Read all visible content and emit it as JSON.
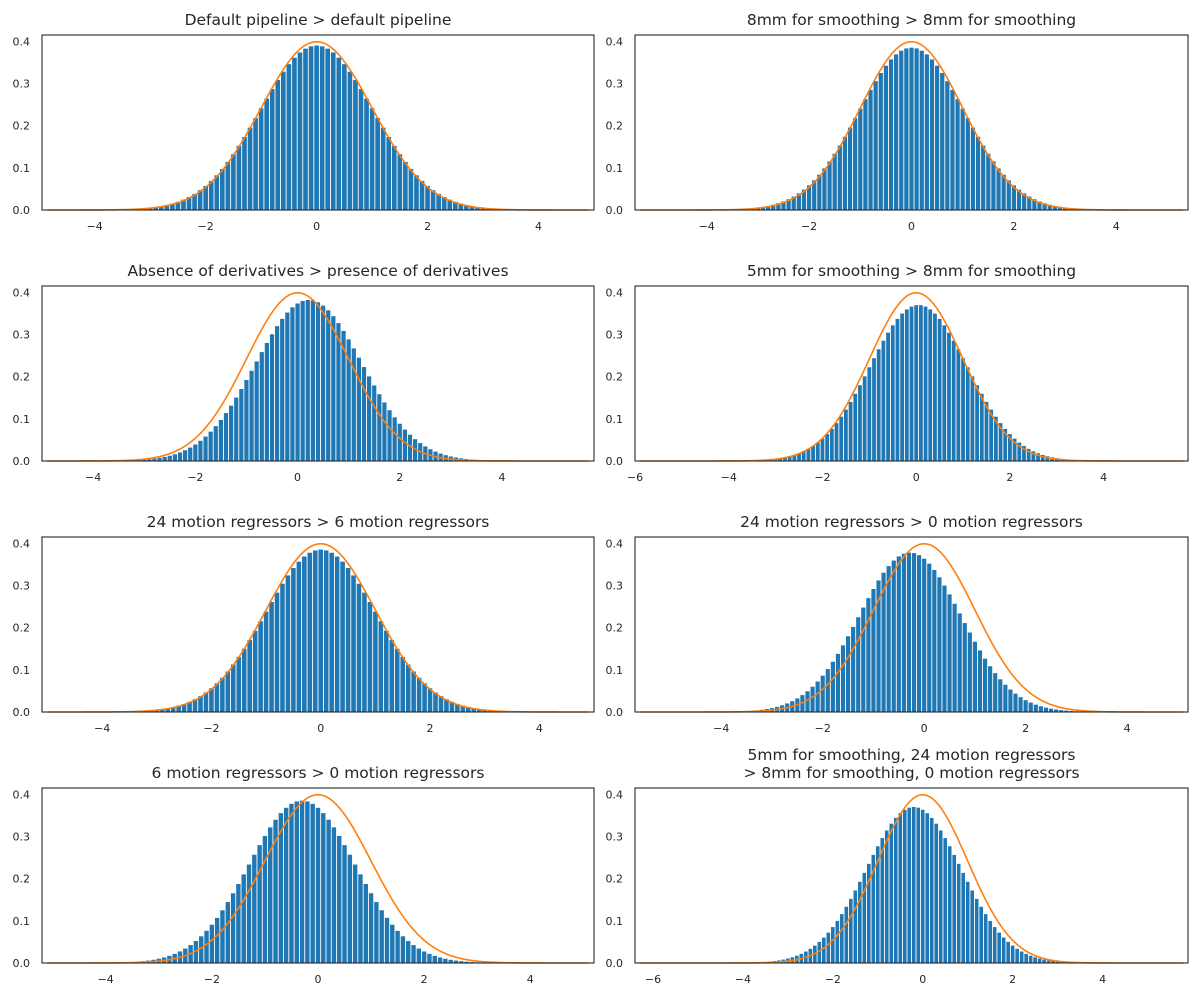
{
  "colors": {
    "bars": "#1f77b4",
    "curve": "#ff7f0e",
    "frame": "#262626",
    "background": "#ffffff"
  },
  "chart_data": [
    {
      "type": "bar",
      "title": [
        "Default pipeline > default pipeline"
      ],
      "xlim": [
        -4.95,
        5.0
      ],
      "ylim": [
        0,
        0.415
      ],
      "xticks": [
        -4,
        -2,
        0,
        2,
        4
      ],
      "yticks": [
        0.0,
        0.1,
        0.2,
        0.3,
        0.4
      ],
      "histogram": {
        "mean": 0.0,
        "sd": 1.02,
        "peak": 0.39,
        "range": [
          -4.9,
          4.9
        ],
        "bin_width": 0.1
      },
      "reference_curve": {
        "label": "standard normal density",
        "mean": 0,
        "sd": 1,
        "peak": 0.399
      }
    },
    {
      "type": "bar",
      "title": [
        "8mm for smoothing > 8mm for smoothing"
      ],
      "xlim": [
        -5.4,
        5.4
      ],
      "ylim": [
        0,
        0.415
      ],
      "xticks": [
        -4,
        -2,
        0,
        2,
        4
      ],
      "yticks": [
        0.0,
        0.1,
        0.2,
        0.3,
        0.4
      ],
      "histogram": {
        "mean": 0.0,
        "sd": 1.03,
        "peak": 0.385,
        "range": [
          -5.3,
          4.9
        ],
        "bin_width": 0.1
      },
      "reference_curve": {
        "label": "standard normal density",
        "mean": 0,
        "sd": 1,
        "peak": 0.399
      }
    },
    {
      "type": "bar",
      "title": [
        "Absence of derivatives > presence of derivatives"
      ],
      "xlim": [
        -5.0,
        5.8
      ],
      "ylim": [
        0,
        0.415
      ],
      "xticks": [
        -4,
        -2,
        0,
        2,
        4
      ],
      "yticks": [
        0.0,
        0.1,
        0.2,
        0.3,
        0.4
      ],
      "histogram": {
        "mean": 0.22,
        "sd": 1.04,
        "peak": 0.382,
        "range": [
          -4.5,
          5.0
        ],
        "bin_width": 0.1
      },
      "reference_curve": {
        "label": "standard normal density",
        "mean": 0,
        "sd": 1,
        "peak": 0.399
      }
    },
    {
      "type": "bar",
      "title": [
        "5mm for smoothing > 8mm for smoothing"
      ],
      "xlim": [
        -6.0,
        5.8
      ],
      "ylim": [
        0,
        0.415
      ],
      "xticks": [
        -6,
        -4,
        -2,
        0,
        2,
        4
      ],
      "yticks": [
        0.0,
        0.1,
        0.2,
        0.3,
        0.4
      ],
      "histogram": {
        "mean": 0.05,
        "sd": 1.04,
        "peak": 0.37,
        "range": [
          -5.5,
          5.3
        ],
        "bin_width": 0.1
      },
      "reference_curve": {
        "label": "standard normal density",
        "mean": 0,
        "sd": 1,
        "peak": 0.399
      }
    },
    {
      "type": "bar",
      "title": [
        "24 motion regressors > 6 motion regressors"
      ],
      "xlim": [
        -5.1,
        5.0
      ],
      "ylim": [
        0,
        0.415
      ],
      "xticks": [
        -4,
        -2,
        0,
        2,
        4
      ],
      "yticks": [
        0.0,
        0.1,
        0.2,
        0.3,
        0.4
      ],
      "histogram": {
        "mean": 0.0,
        "sd": 1.02,
        "peak": 0.385,
        "range": [
          -4.7,
          4.5
        ],
        "bin_width": 0.1
      },
      "reference_curve": {
        "label": "standard normal density",
        "mean": 0,
        "sd": 1,
        "peak": 0.399
      }
    },
    {
      "type": "bar",
      "title": [
        "24 motion regressors > 0 motion regressors"
      ],
      "xlim": [
        -5.7,
        5.2
      ],
      "ylim": [
        0,
        0.415
      ],
      "xticks": [
        -4,
        -2,
        0,
        2,
        4
      ],
      "yticks": [
        0.0,
        0.1,
        0.2,
        0.3,
        0.4
      ],
      "histogram": {
        "mean": -0.28,
        "sd": 1.0,
        "peak": 0.378,
        "range": [
          -5.0,
          4.7
        ],
        "bin_width": 0.1
      },
      "reference_curve": {
        "label": "standard normal density",
        "mean": 0,
        "sd": 1,
        "peak": 0.399
      }
    },
    {
      "type": "bar",
      "title": [
        "6 motion regressors > 0 motion regressors"
      ],
      "xlim": [
        -5.2,
        5.2
      ],
      "ylim": [
        0,
        0.415
      ],
      "xticks": [
        -4,
        -2,
        0,
        2,
        4
      ],
      "yticks": [
        0.0,
        0.1,
        0.2,
        0.3,
        0.4
      ],
      "histogram": {
        "mean": -0.3,
        "sd": 1.0,
        "peak": 0.385,
        "range": [
          -5.0,
          4.6
        ],
        "bin_width": 0.1
      },
      "reference_curve": {
        "label": "standard normal density",
        "mean": 0,
        "sd": 1,
        "peak": 0.399
      }
    },
    {
      "type": "bar",
      "title": [
        "5mm for smoothing, 24 motion regressors",
        "> 8mm for smoothing, 0 motion regressors"
      ],
      "xlim": [
        -6.4,
        5.9
      ],
      "ylim": [
        0,
        0.415
      ],
      "xticks": [
        -6,
        -4,
        -2,
        0,
        2,
        4
      ],
      "yticks": [
        0.0,
        0.1,
        0.2,
        0.3,
        0.4
      ],
      "histogram": {
        "mean": -0.2,
        "sd": 1.05,
        "peak": 0.37,
        "range": [
          -5.6,
          5.2
        ],
        "bin_width": 0.1
      },
      "reference_curve": {
        "label": "standard normal density",
        "mean": 0,
        "sd": 1,
        "peak": 0.399
      }
    }
  ]
}
